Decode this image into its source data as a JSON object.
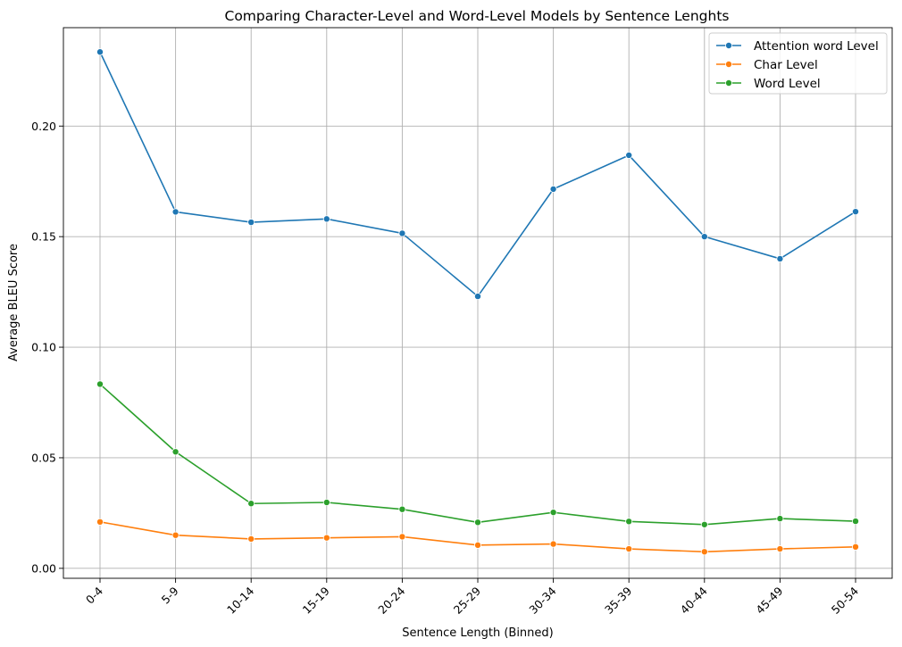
{
  "chart_data": {
    "type": "line",
    "title": "Comparing Character-Level and Word-Level Models by Sentence Lenghts",
    "xlabel": "Sentence Length (Binned)",
    "ylabel": "Average BLEU Score",
    "categories": [
      "0-4",
      "5-9",
      "10-14",
      "15-19",
      "20-24",
      "25-29",
      "30-34",
      "35-39",
      "40-44",
      "45-49",
      "50-54"
    ],
    "ylim": [
      -0.0045,
      0.2445
    ],
    "yticks": [
      0.0,
      0.05,
      0.1,
      0.15,
      0.2
    ],
    "ytick_labels": [
      "0.00",
      "0.05",
      "0.10",
      "0.15",
      "0.20"
    ],
    "grid": true,
    "legend_position": "top-right",
    "series": [
      {
        "name": "Attention word Level",
        "color": "#1f77b4",
        "values": [
          0.2335,
          0.1612,
          0.1565,
          0.158,
          0.1515,
          0.123,
          0.1715,
          0.1868,
          0.15,
          0.14,
          0.1613
        ]
      },
      {
        "name": "Char Level",
        "color": "#ff7f0e",
        "values": [
          0.021,
          0.015,
          0.0133,
          0.0138,
          0.0143,
          0.0105,
          0.011,
          0.0088,
          0.0075,
          0.0088,
          0.0097
        ]
      },
      {
        "name": "Word Level",
        "color": "#2ca02c",
        "values": [
          0.0833,
          0.0527,
          0.0293,
          0.0298,
          0.0267,
          0.0208,
          0.0253,
          0.0212,
          0.0198,
          0.0225,
          0.0213
        ]
      }
    ]
  }
}
